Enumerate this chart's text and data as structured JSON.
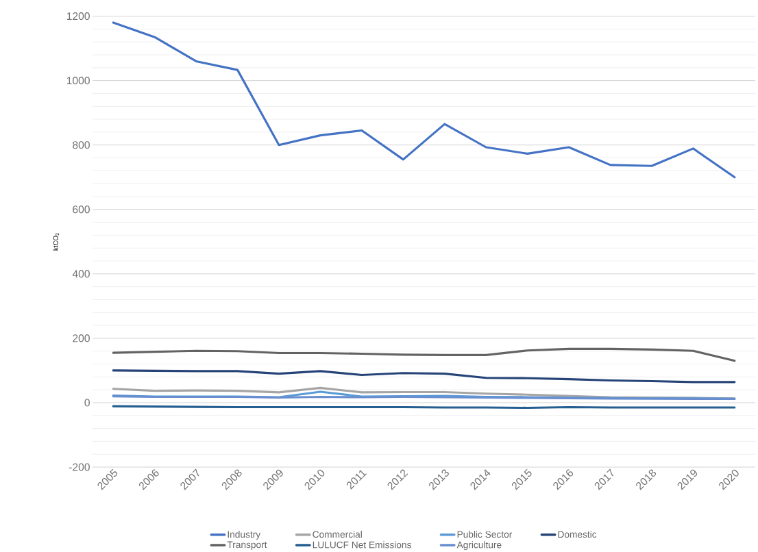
{
  "chart_data": {
    "type": "line",
    "ylabel": "ktCO$_{2}$",
    "categories": [
      "2005",
      "2006",
      "2007",
      "2008",
      "2009",
      "2010",
      "2011",
      "2012",
      "2013",
      "2014",
      "2015",
      "2016",
      "2017",
      "2018",
      "2019",
      "2020"
    ],
    "series": [
      {
        "name": "Industry",
        "color": "#4472c4",
        "values": [
          1180,
          1135,
          1060,
          1033,
          800,
          830,
          845,
          755,
          865,
          793,
          773,
          793,
          738,
          735,
          789,
          700
        ]
      },
      {
        "name": "Commercial",
        "color": "#a5a5a5",
        "values": [
          43,
          37,
          38,
          37,
          32,
          46,
          32,
          33,
          33,
          28,
          25,
          21,
          17,
          16,
          15,
          13
        ]
      },
      {
        "name": "Public Sector",
        "color": "#5b9bd5",
        "values": [
          22,
          19,
          19,
          19,
          17,
          34,
          19,
          20,
          21,
          18,
          17,
          15,
          14,
          13,
          13,
          12
        ]
      },
      {
        "name": "Domestic",
        "color": "#264478",
        "values": [
          100,
          99,
          98,
          98,
          90,
          98,
          86,
          92,
          90,
          77,
          76,
          73,
          69,
          67,
          64,
          64
        ]
      },
      {
        "name": "Transport",
        "color": "#636363",
        "values": [
          155,
          158,
          161,
          160,
          154,
          154,
          152,
          149,
          148,
          148,
          162,
          167,
          167,
          165,
          161,
          130
        ]
      },
      {
        "name": "LULUCF Net Emissions",
        "color": "#255e91",
        "values": [
          -11,
          -12,
          -13,
          -14,
          -14,
          -14,
          -14,
          -14,
          -15,
          -15,
          -16,
          -14,
          -15,
          -15,
          -15,
          -15
        ]
      },
      {
        "name": "Agriculture",
        "color": "#698ed0",
        "values": [
          20,
          18,
          18,
          18,
          16,
          18,
          17,
          18,
          17,
          16,
          15,
          14,
          13,
          13,
          12,
          12
        ]
      }
    ],
    "ylim": [
      -200,
      1200
    ],
    "yticks": [
      -200,
      0,
      200,
      400,
      600,
      800,
      1000,
      1200
    ],
    "grid": "y",
    "legend": "bottom",
    "marker": "none",
    "line_style": "solid"
  }
}
